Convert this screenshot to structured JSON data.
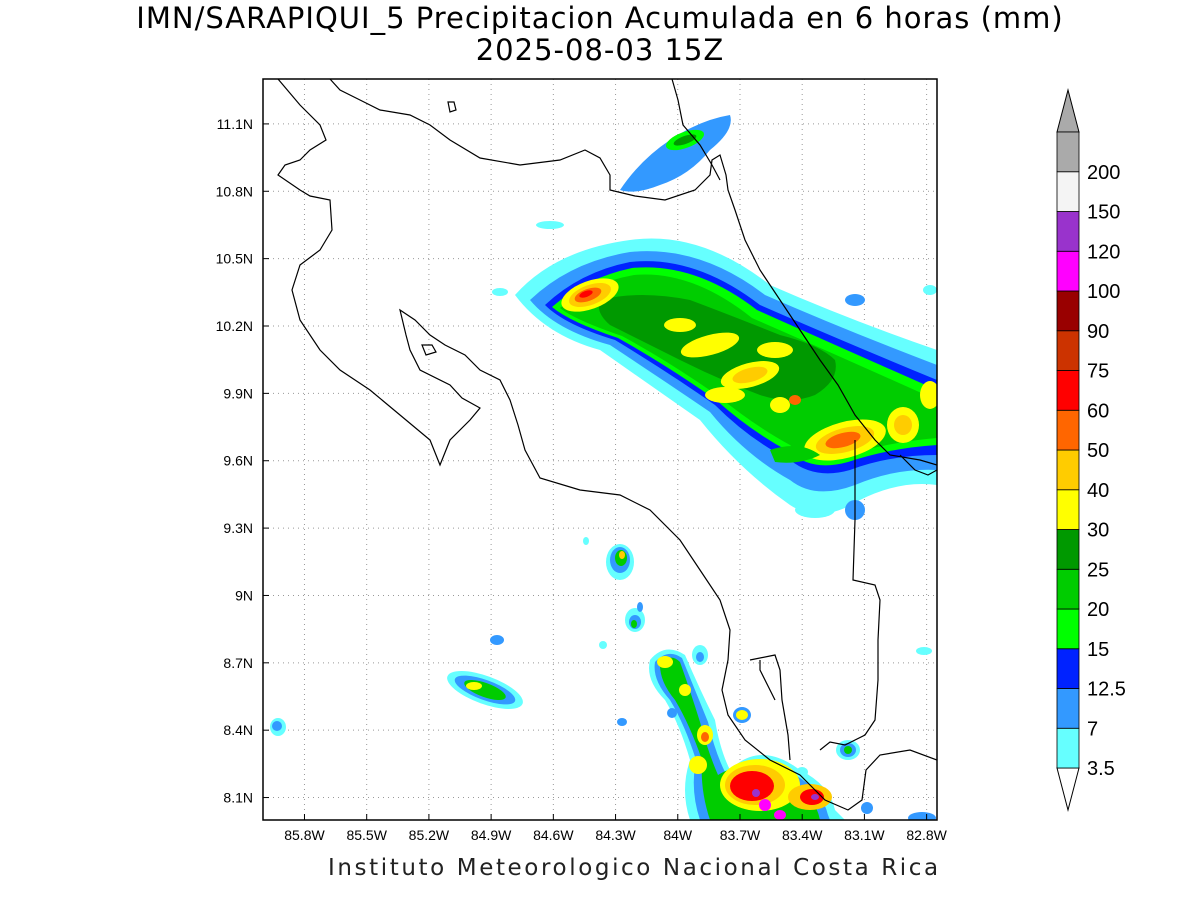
{
  "title": {
    "line1": "IMN/SARAPIQUI_5 Precipitacion Acumulada en 6 horas (mm)",
    "line2": "2025-08-03 15Z"
  },
  "footer": "Instituto Meteorologico Nacional Costa Rica",
  "map": {
    "lon_range": [
      -86.0,
      -82.75
    ],
    "lat_range": [
      8.0,
      11.3
    ],
    "lon_ticks": [
      "85.8W",
      "85.5W",
      "85.2W",
      "84.9W",
      "84.6W",
      "84.3W",
      "84W",
      "83.7W",
      "83.4W",
      "83.1W",
      "82.8W"
    ],
    "lon_tick_values": [
      -85.8,
      -85.5,
      -85.2,
      -84.9,
      -84.6,
      -84.3,
      -84.0,
      -83.7,
      -83.4,
      -83.1,
      -82.8
    ],
    "lat_ticks": [
      "11.1N",
      "10.8N",
      "10.5N",
      "10.2N",
      "9.9N",
      "9.6N",
      "9.3N",
      "9N",
      "8.7N",
      "8.4N",
      "8.1N"
    ],
    "lat_tick_values": [
      11.1,
      10.8,
      10.5,
      10.2,
      9.9,
      9.6,
      9.3,
      9.0,
      8.7,
      8.4,
      8.1
    ],
    "grid": true
  },
  "colorbar": {
    "labels": [
      "3.5",
      "7",
      "12.5",
      "15",
      "20",
      "25",
      "30",
      "40",
      "50",
      "60",
      "75",
      "90",
      "100",
      "120",
      "150",
      "200"
    ],
    "colors": [
      "#66ffff",
      "#3399ff",
      "#0022ff",
      "#00ff00",
      "#00cc00",
      "#009900",
      "#ffff00",
      "#ffcc00",
      "#ff6600",
      "#ff0000",
      "#cc3300",
      "#990000",
      "#ff00ff",
      "#9933cc",
      "#f4f4f4",
      "#aaaaaa"
    ],
    "under_color": "#ffffff",
    "over_color": "#aaaaaa"
  }
}
